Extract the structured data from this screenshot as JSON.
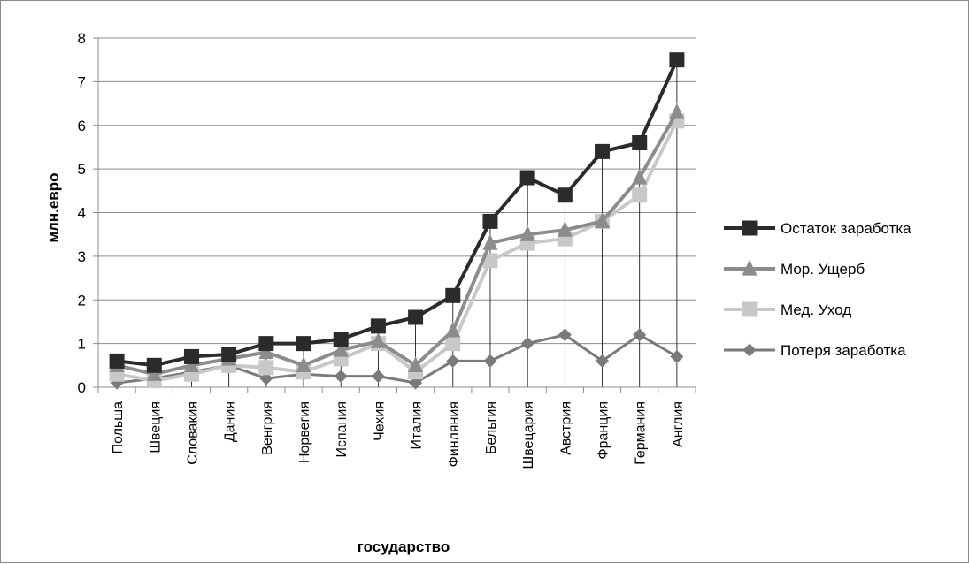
{
  "chart_data": {
    "type": "line",
    "title": "",
    "xlabel": "государство",
    "ylabel": "млн.евро",
    "ylim": [
      0,
      8
    ],
    "yticks": [
      "0",
      "1",
      "2",
      "3",
      "4",
      "5",
      "6",
      "7",
      "8"
    ],
    "grid": "horizontal",
    "legend_position": "right",
    "categories": [
      "Польша",
      "Швеция",
      "Словакия",
      "Дания",
      "Венгрия",
      "Норвегия",
      "Испания",
      "Чехия",
      "Италия",
      "Финляния",
      "Бельгия",
      "Швецария",
      "Австрия",
      "Франция",
      "Германия",
      "Англия"
    ],
    "series": [
      {
        "name": "Остаток заработка",
        "marker": "square",
        "color": "#2b2b2b",
        "values": [
          0.6,
          0.5,
          0.7,
          0.75,
          1.0,
          1.0,
          1.1,
          1.4,
          1.6,
          2.1,
          3.8,
          4.8,
          4.4,
          5.4,
          5.6,
          7.5
        ]
      },
      {
        "name": "Мор. Ущерб",
        "marker": "triangle",
        "color": "#8c8c8c",
        "values": [
          0.5,
          0.3,
          0.5,
          0.65,
          0.8,
          0.5,
          0.85,
          1.05,
          0.5,
          1.3,
          3.3,
          3.5,
          3.6,
          3.8,
          4.8,
          6.3
        ]
      },
      {
        "name": "Мед. Уход",
        "marker": "square",
        "color": "#c8c8c8",
        "values": [
          0.3,
          0.15,
          0.3,
          0.5,
          0.45,
          0.35,
          0.65,
          1.0,
          0.35,
          1.0,
          2.9,
          3.3,
          3.4,
          3.8,
          4.4,
          6.1
        ]
      },
      {
        "name": "Потеря заработка",
        "marker": "diamond",
        "color": "#7a7a7a",
        "values": [
          0.1,
          0.2,
          0.35,
          0.5,
          0.2,
          0.3,
          0.25,
          0.25,
          0.1,
          0.6,
          0.6,
          1.0,
          1.2,
          0.6,
          1.2,
          0.7
        ]
      }
    ]
  }
}
